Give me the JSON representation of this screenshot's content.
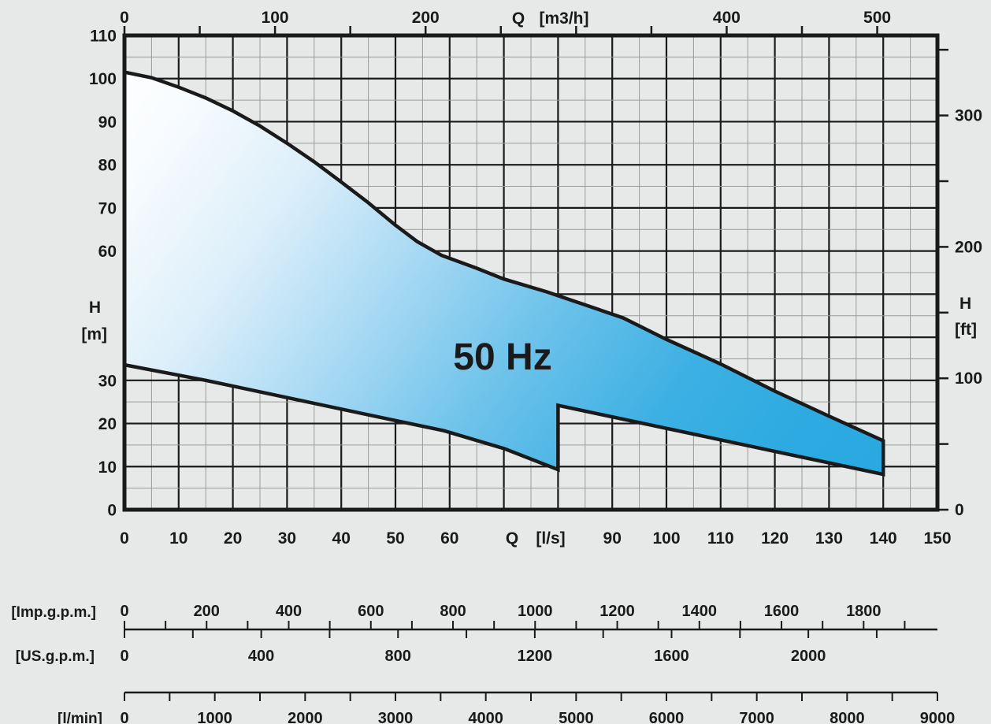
{
  "chart_data": {
    "type": "area",
    "frequency_label": "50 Hz",
    "axes": {
      "top": {
        "quantity": "Q",
        "unit": "[m3/h]",
        "m3h_per_ls": 3.6,
        "tick_step": 50,
        "tick_max": 500,
        "labeled": [
          0,
          100,
          200,
          400,
          500
        ]
      },
      "bottom": {
        "quantity": "Q",
        "unit": "[l/s]",
        "min": 0,
        "max": 150,
        "labeled": [
          0,
          10,
          20,
          30,
          40,
          50,
          60,
          90,
          100,
          110,
          120,
          130,
          140,
          150
        ]
      },
      "left": {
        "quantity": "H",
        "unit": "[m]",
        "min": 0,
        "max": 110,
        "labeled": [
          110,
          100,
          90,
          80,
          70,
          60,
          30,
          20,
          10,
          0
        ]
      },
      "right": {
        "quantity": "H",
        "unit": "[ft]",
        "ft_per_m": 3.28084,
        "tick_step": 50,
        "tick_max": 350,
        "labeled": [
          300,
          200,
          100,
          0
        ]
      }
    },
    "grid": {
      "x_minor_step": 5,
      "x_major_step": 10,
      "y_minor_step": 5,
      "y_major_step": 10
    },
    "envelope_ls_m": {
      "upper": [
        [
          0,
          101.5
        ],
        [
          5,
          100.2
        ],
        [
          10,
          98
        ],
        [
          15,
          95.5
        ],
        [
          20,
          92.5
        ],
        [
          25,
          89
        ],
        [
          30,
          85
        ],
        [
          35,
          80.7
        ],
        [
          40,
          76
        ],
        [
          45,
          71.2
        ],
        [
          50,
          66
        ],
        [
          54,
          62.2
        ],
        [
          58.5,
          59
        ],
        [
          65,
          56
        ],
        [
          70,
          53.5
        ],
        [
          78,
          50.5
        ],
        [
          85,
          47.5
        ],
        [
          92,
          44.5
        ],
        [
          100,
          39.5
        ],
        [
          110,
          33.8
        ],
        [
          120,
          27.5
        ],
        [
          130,
          21.7
        ],
        [
          140,
          16
        ]
      ],
      "lower": [
        [
          0,
          33.6
        ],
        [
          15,
          30
        ],
        [
          30,
          26
        ],
        [
          45,
          22
        ],
        [
          59,
          18.3
        ],
        [
          70,
          14.2
        ],
        [
          80,
          9.3
        ],
        [
          80,
          24.2
        ],
        [
          140,
          8.2
        ]
      ]
    },
    "conversion_scales": [
      {
        "id": "imp_gpm",
        "label": "[Imp.g.p.m.]",
        "ls_per_unit": 0.0757682,
        "tick_step": 100,
        "tick_max": 1900,
        "labeled": [
          0,
          200,
          400,
          600,
          800,
          1000,
          1200,
          1400,
          1600,
          1800
        ]
      },
      {
        "id": "us_gpm",
        "label": "[US.g.p.m.]",
        "ls_per_unit": 0.0630902,
        "tick_step": 200,
        "tick_max": 2200,
        "labeled": [
          0,
          400,
          800,
          1200,
          1600,
          2000
        ]
      },
      {
        "id": "l_min",
        "label": "[l/min]",
        "ls_per_unit": 0.0166667,
        "tick_step": 500,
        "tick_max": 9000,
        "labeled": [
          0,
          1000,
          2000,
          3000,
          4000,
          5000,
          6000,
          7000,
          8000,
          9000
        ]
      }
    ],
    "colors": {
      "background": "#e7e8e8",
      "line": "#1a1a1a",
      "grid_minor": "#9b9b9b",
      "envelope_fill_gradient": [
        [
          0,
          "#ffffff"
        ],
        [
          0.1,
          "#f7fbfe"
        ],
        [
          0.25,
          "#ddeffa"
        ],
        [
          0.42,
          "#a5d8f3"
        ],
        [
          0.58,
          "#6cc2ea"
        ],
        [
          0.75,
          "#3cb0e3"
        ],
        [
          0.9,
          "#2caae1"
        ],
        [
          1,
          "#29a9e1"
        ]
      ]
    }
  }
}
